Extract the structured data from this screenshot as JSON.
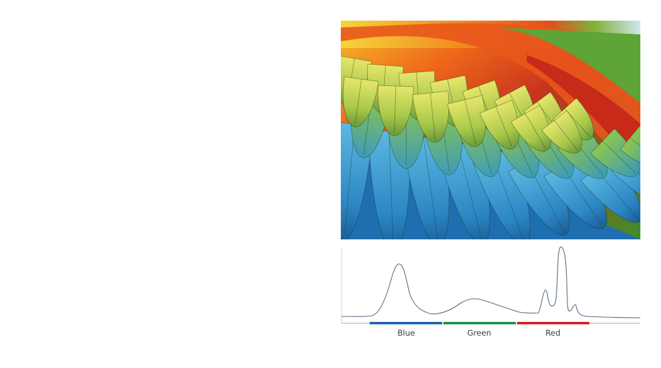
{
  "figure": {
    "photo_subject": "macaw-feathers",
    "spectrum": {
      "bands": [
        {
          "label": "Blue",
          "color": "#1f5fa6"
        },
        {
          "label": "Green",
          "color": "#1e8a4c"
        },
        {
          "label": "Red",
          "color": "#c81e1e"
        }
      ],
      "curve_color": "#5a6f86",
      "axis_color": "#a8a8a8"
    }
  }
}
